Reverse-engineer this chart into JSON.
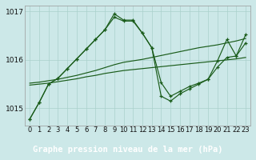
{
  "hours": [
    0,
    1,
    2,
    3,
    4,
    5,
    6,
    7,
    8,
    9,
    10,
    11,
    12,
    13,
    14,
    15,
    16,
    17,
    18,
    19,
    20,
    21,
    22,
    23
  ],
  "y_line1": [
    1014.78,
    1015.12,
    1015.5,
    1015.62,
    1015.82,
    1016.02,
    1016.22,
    1016.42,
    1016.62,
    1016.95,
    1016.82,
    1016.82,
    1016.55,
    1016.25,
    1015.25,
    1015.15,
    1015.3,
    1015.4,
    1015.5,
    1015.6,
    1015.98,
    1016.42,
    1016.08,
    1016.52
  ],
  "y_line2": [
    1014.78,
    1015.12,
    1015.5,
    1015.62,
    1015.82,
    1016.02,
    1016.22,
    1016.42,
    1016.62,
    1016.88,
    1016.8,
    1016.8,
    1016.55,
    1016.25,
    1015.53,
    1015.25,
    1015.35,
    1015.45,
    1015.52,
    1015.6,
    1015.85,
    1016.05,
    1016.08,
    1016.35
  ],
  "y_line3": [
    1015.52,
    1015.54,
    1015.57,
    1015.6,
    1015.64,
    1015.68,
    1015.73,
    1015.78,
    1015.84,
    1015.9,
    1015.95,
    1015.98,
    1016.01,
    1016.05,
    1016.09,
    1016.13,
    1016.17,
    1016.21,
    1016.25,
    1016.28,
    1016.31,
    1016.35,
    1016.39,
    1016.44
  ],
  "y_line4": [
    1015.48,
    1015.5,
    1015.52,
    1015.55,
    1015.58,
    1015.61,
    1015.65,
    1015.68,
    1015.72,
    1015.75,
    1015.78,
    1015.8,
    1015.82,
    1015.84,
    1015.86,
    1015.88,
    1015.9,
    1015.92,
    1015.94,
    1015.96,
    1015.98,
    1016.0,
    1016.02,
    1016.05
  ],
  "ylim_min": 1014.65,
  "ylim_max": 1017.12,
  "yticks": [
    1015,
    1016,
    1017
  ],
  "bg_color": "#cce8e8",
  "grid_color": "#aad0cc",
  "line_color": "#1a5c1a",
  "title_text": "Graphe pression niveau de la mer (hPa)",
  "title_bg": "#2d6e2d",
  "title_color": "#ffffff",
  "title_fontsize": 7.5,
  "tick_fontsize": 6
}
